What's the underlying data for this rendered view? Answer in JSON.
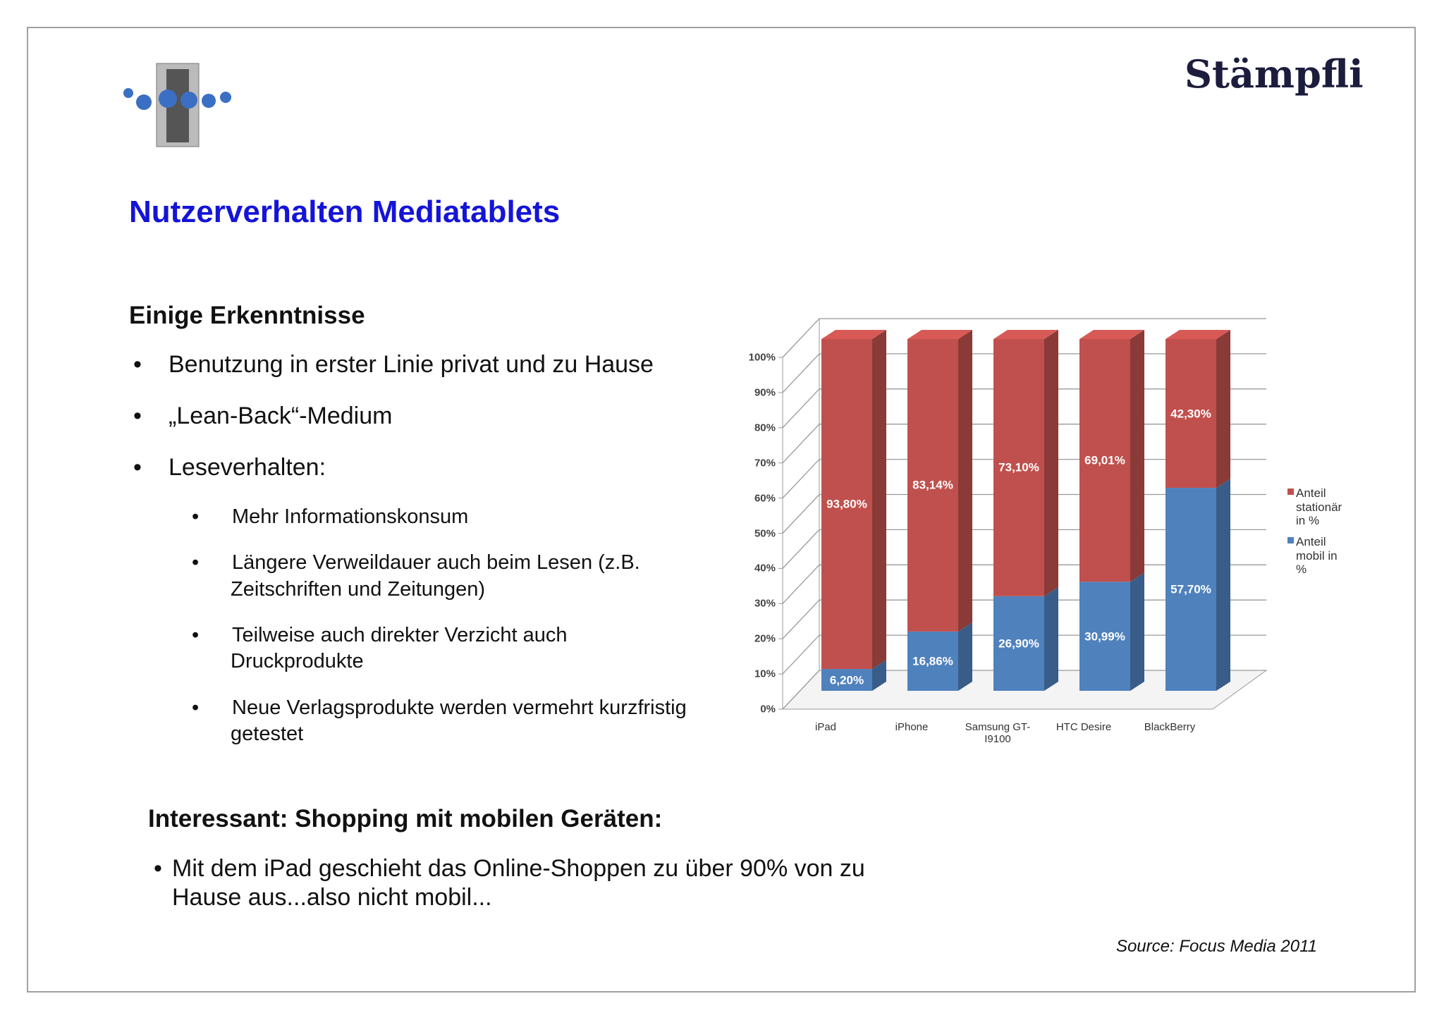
{
  "logo": "Stämpfli",
  "title": "Nutzerverhalten Mediatablets",
  "section1": {
    "heading": "Einige Erkenntnisse",
    "bullets": [
      "Benutzung in erster Linie privat und zu Hause",
      "„Lean-Back“-Medium",
      "Leseverhalten:"
    ],
    "sub_bullets": [
      [
        "Mehr Informationskonsum"
      ],
      [
        "Längere Verweildauer auch beim Lesen (z.B.",
        "Zeitschriften und Zeitungen)"
      ],
      [
        "Teilweise auch direkter Verzicht auch",
        "Druckprodukte"
      ],
      [
        "Neue Verlagsprodukte werden vermehrt kurzfristig",
        "getestet"
      ]
    ]
  },
  "section2": {
    "heading": "Interessant: Shopping mit mobilen Geräten:",
    "bullet": [
      "Mit dem iPad geschieht das Online-Shoppen zu über 90% von zu",
      "Hause aus...also nicht mobil..."
    ]
  },
  "source": "Source: Focus Media 2011",
  "chart_data": {
    "type": "stacked_bar_3d",
    "categories": [
      "iPad",
      "iPhone",
      "Samsung GT-I9100",
      "HTC Desire",
      "BlackBerry"
    ],
    "series": [
      {
        "name": "Anteil stationär in %",
        "color": "#c0504d",
        "values": [
          93.8,
          83.14,
          73.1,
          69.01,
          42.3
        ],
        "value_labels": [
          "93,80%",
          "83,14%",
          "73,10%",
          "69,01%",
          "42,30%"
        ]
      },
      {
        "name": "Anteil mobil in %",
        "color": "#4f81bd",
        "values": [
          6.2,
          16.86,
          26.9,
          30.99,
          57.7
        ],
        "value_labels": [
          "6,20%",
          "16,86%",
          "26,90%",
          "30,99%",
          "57,70%"
        ]
      }
    ],
    "ylim": [
      0,
      100
    ],
    "yticks": [
      {
        "value": 0,
        "label": "0%"
      },
      {
        "value": 10,
        "label": "10%"
      },
      {
        "value": 20,
        "label": "20%"
      },
      {
        "value": 30,
        "label": "30%"
      },
      {
        "value": 40,
        "label": "40%"
      },
      {
        "value": 50,
        "label": "50%"
      },
      {
        "value": 60,
        "label": "60%"
      },
      {
        "value": 70,
        "label": "70%"
      },
      {
        "value": 80,
        "label": "80%"
      },
      {
        "value": 90,
        "label": "90%"
      },
      {
        "value": 100,
        "label": "100%"
      }
    ],
    "grid": true,
    "legend": "right"
  }
}
